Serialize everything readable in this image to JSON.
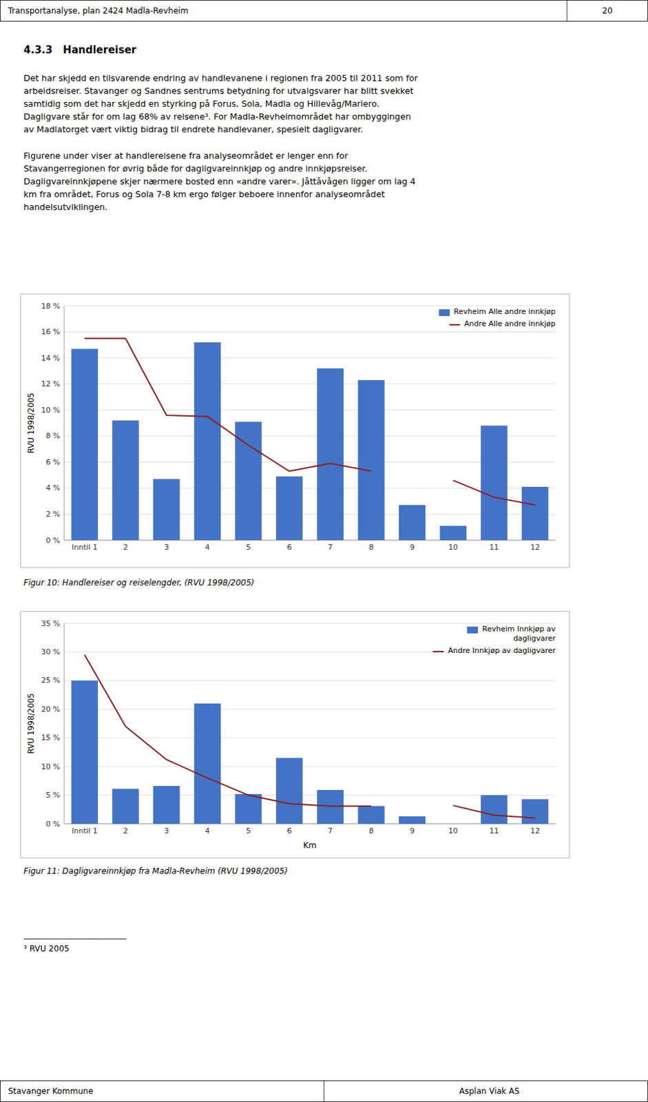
{
  "page_header": "Transportanalyse, plan 2424 Madla-Revheim",
  "page_number": "20",
  "section_title": "4.3.3   Handlereiser",
  "paragraphs": [
    [
      "Det har skjedd en tilsvarende endring av handlevanene i regionen fra 2005 til 2011 som for",
      "arbeidsreiser. Stavanger og Sandnes sentrums betydning for utvalgsvarer har blitt svekket",
      "samtidig som det har skjedd en styrking på Forus, Sola, Madla og Hillevåg/Mariero.",
      "Dagligvare står for om lag 68% av reisene³. For Madla-Revheimområdet har ombyggingen",
      "av Madlatorget vært viktig bidrag til endrete handlevaner, spesielt dagligvarer."
    ],
    [
      "Figurene under viser at handlereisene fra analyseområdet er lenger enn for",
      "Stavangerregionen for øvrig både for dagligvareinnkjøp og andre innkjøpsreiser.",
      "Dagligvareinnkjøpene skjer nærmere bosted enn «andre varer». Jåttåvågen ligger om lag 4",
      "km fra området, Forus og Sola 7-8 km ergo følger beboere innenfor analyseområdet",
      "handelsutviklingen."
    ]
  ],
  "chart_data": [
    {
      "type": "bar",
      "caption": "Figur 10: Handlereiser og reiselengder, (RVU 1998/2005)",
      "ylabel": "RVU 1998/2005",
      "categories": [
        "Inntil 1",
        "2",
        "3",
        "4",
        "5",
        "6",
        "7",
        "8",
        "9",
        "10",
        "11",
        "12"
      ],
      "series": [
        {
          "name": "Revheim Alle andre innkjøp",
          "type": "bar",
          "color": "#4472C4",
          "values": [
            14.7,
            9.2,
            4.7,
            15.2,
            9.1,
            4.9,
            13.2,
            12.3,
            2.7,
            1.1,
            8.8,
            4.1
          ]
        },
        {
          "name": "Andre Alle andre innkjøp",
          "type": "line",
          "color": "#8B2020",
          "values": [
            15.5,
            15.5,
            9.6,
            9.5,
            7.3,
            5.3,
            5.9,
            5.3,
            null,
            4.6,
            3.3,
            2.7
          ]
        }
      ],
      "ylim": [
        0,
        18
      ],
      "yticks": [
        {
          "value": 0,
          "label": "0 %"
        },
        {
          "value": 2,
          "label": "2 %"
        },
        {
          "value": 4,
          "label": "4 %"
        },
        {
          "value": 6,
          "label": "6 %"
        },
        {
          "value": 8,
          "label": "8 %"
        },
        {
          "value": 10,
          "label": "10 %"
        },
        {
          "value": 12,
          "label": "12 %"
        },
        {
          "value": 14,
          "label": "14 %"
        },
        {
          "value": 16,
          "label": "16 %"
        },
        {
          "value": 18,
          "label": "18 %"
        }
      ],
      "grid": true,
      "legend": "upper right"
    },
    {
      "type": "bar",
      "caption": "Figur 11: Dagligvareinnkjøp fra Madla-Revheim (RVU 1998/2005)",
      "ylabel": "RVU 1998/2005",
      "xlabel": "Km",
      "categories": [
        "Inntil 1",
        "2",
        "3",
        "4",
        "5",
        "6",
        "7",
        "8",
        "9",
        "10",
        "11",
        "12"
      ],
      "series": [
        {
          "name": "Revheim Innkjøp av\ndagligvarer",
          "type": "bar",
          "color": "#4472C4",
          "values": [
            25.0,
            6.1,
            6.6,
            21.0,
            5.2,
            11.5,
            5.9,
            3.1,
            1.3,
            0.0,
            5.0,
            4.3
          ]
        },
        {
          "name": "Andre Innkjøp av dagligvarer",
          "type": "line",
          "color": "#8B2020",
          "values": [
            29.5,
            17.0,
            11.2,
            8.0,
            5.0,
            3.5,
            3.1,
            3.1,
            null,
            3.2,
            1.5,
            1.0
          ]
        }
      ],
      "ylim": [
        0,
        35
      ],
      "yticks": [
        {
          "value": 0,
          "label": "0 %"
        },
        {
          "value": 5,
          "label": "5 %"
        },
        {
          "value": 10,
          "label": "10 %"
        },
        {
          "value": 15,
          "label": "15 %"
        },
        {
          "value": 20,
          "label": "20 %"
        },
        {
          "value": 25,
          "label": "25 %"
        },
        {
          "value": 30,
          "label": "30 %"
        },
        {
          "value": 35,
          "label": "35 %"
        }
      ],
      "grid": true,
      "legend": "upper right"
    }
  ],
  "footnote_line": "___________________________",
  "footnote": "³ RVU 2005",
  "footer_left": "Stavanger Kommune",
  "footer_right": "Asplan Viak AS"
}
